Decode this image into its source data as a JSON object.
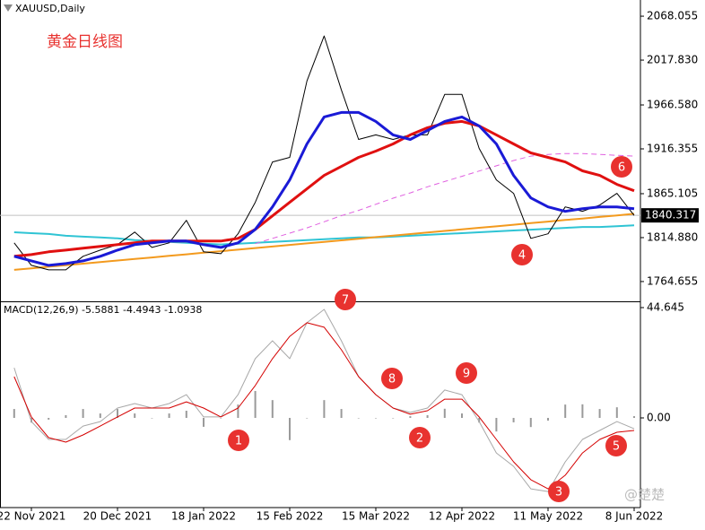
{
  "chart_data": [
    {
      "type": "line",
      "subtitle": "XAUUSD,Daily",
      "title": "黄金日线图",
      "ylim": [
        1742.03,
        2086.57
      ],
      "yticks": [
        2068.055,
        {
          "value": 2017.83,
          "label": "2017.830"
        },
        {
          "value": 1966.58,
          "label": "1966.580"
        },
        1916.355,
        1865.105,
        {
          "value": 1814.88,
          "label": "1814.880"
        },
        1764.655
      ],
      "current_price": 1840.317,
      "series": [
        {
          "color": "#2fc4d4",
          "values": [
            1821,
            1820,
            1819,
            1817,
            1816,
            1815,
            1814,
            1812,
            1811,
            1810,
            1809,
            1808,
            1807,
            1808,
            1809,
            1810,
            1811,
            1812,
            1813,
            1814,
            1815,
            1815,
            1816,
            1817,
            1818,
            1819,
            1820,
            1821,
            1822,
            1823,
            1824,
            1825,
            1826,
            1827,
            1827,
            1828,
            1829
          ]
        },
        {
          "color": "#f39a1e",
          "values": [
            1778.0,
            1779.8,
            1781.6,
            1783.3,
            1785.1,
            1786.9,
            1788.7,
            1790.5,
            1792.2,
            1794.0,
            1795.8,
            1797.6,
            1799.4,
            1801.1,
            1802.9,
            1804.7,
            1806.5,
            1808.3,
            1810.0,
            1811.8,
            1813.6,
            1815.4,
            1817.2,
            1818.9,
            1820.7,
            1822.5,
            1824.3,
            1826.1,
            1827.8,
            1829.6,
            1831.4,
            1833.2,
            1835.0,
            1836.7,
            1838.5,
            1840.3,
            1842.1
          ]
        },
        {
          "color": "#e060e0",
          "dashed": true,
          "values": [
            null,
            null,
            null,
            null,
            null,
            null,
            null,
            null,
            null,
            null,
            null,
            null,
            null,
            null,
            1808,
            1814,
            1820,
            1826,
            1833,
            1840,
            1846,
            1853,
            1860,
            1866,
            1873,
            1879,
            1885,
            1891,
            1897,
            1903,
            1908,
            1910,
            1911,
            1911,
            1910,
            1909,
            1908
          ]
        },
        {
          "color": "#000000",
          "values": [
            1808.9,
            1783.2,
            1778.0,
            1778.0,
            1793.5,
            1800.6,
            1806.8,
            1821.2,
            1803.7,
            1808.9,
            1834.6,
            1798.6,
            1796.5,
            1819.2,
            1855.2,
            1901.4,
            1906.6,
            1994.0,
            2045.4,
            1983.7,
            1927.1,
            1932.3,
            1927.1,
            1932.3,
            1932.3,
            1978.6,
            1978.6,
            1916.9,
            1880.9,
            1865.5,
            1814.0,
            1819.2,
            1850.0,
            1845.0,
            1852.1,
            1865.5,
            1840.3
          ]
        },
        {
          "color": "#e01010",
          "values": [
            1793.5,
            1795.5,
            1798.6,
            1800.6,
            1802.7,
            1804.8,
            1806.8,
            1808.9,
            1810.9,
            1810.9,
            1810.9,
            1810.9,
            1810.9,
            1814.0,
            1824.3,
            1839.8,
            1855.2,
            1870.6,
            1886.0,
            1896.3,
            1906.6,
            1913.8,
            1922.0,
            1932.3,
            1940.5,
            1945.7,
            1947.7,
            1942.6,
            1932.3,
            1922.0,
            1911.7,
            1906.6,
            1901.4,
            1891.2,
            1886.0,
            1875.7,
            1868.5
          ]
        },
        {
          "color": "#1a1ad6",
          "values": [
            1793.5,
            1788.3,
            1783.2,
            1785.2,
            1788.3,
            1793.5,
            1800.6,
            1806.8,
            1808.9,
            1810.9,
            1810.9,
            1806.8,
            1803.7,
            1808.9,
            1824.3,
            1850.0,
            1880.9,
            1922.0,
            1952.9,
            1958.0,
            1958.0,
            1947.7,
            1932.3,
            1927.1,
            1937.4,
            1947.7,
            1952.9,
            1942.6,
            1922.0,
            1886.0,
            1860.3,
            1850.0,
            1844.9,
            1848.0,
            1850.0,
            1850.0,
            1848.0
          ]
        }
      ],
      "annotations": [
        {
          "text": "6"
        },
        {
          "text": "4"
        }
      ]
    },
    {
      "type": "line",
      "title": "MACD(12,26,9) -5.5881 -4.4943 -1.0938",
      "categories": [
        null,
        "22 Nov 2021",
        null,
        null,
        null,
        null,
        "20 Dec 2021",
        null,
        null,
        null,
        null,
        "18 Jan 2022",
        null,
        null,
        null,
        null,
        "15 Feb 2022",
        null,
        null,
        null,
        null,
        "15 Mar 2022",
        null,
        null,
        null,
        null,
        "12 Apr 2022",
        null,
        null,
        null,
        null,
        "11 May 2022",
        null,
        null,
        null,
        null,
        "8 Jun 2022"
      ],
      "ylim": [
        -36.3,
        46.82
      ],
      "yticks": [
        44.645,
        {
          "value": 0,
          "label": "0.00"
        }
      ],
      "series": [
        {
          "color": "#9a9a9a",
          "style": "bar",
          "values": [
            3.6,
            -1.9,
            -0.7,
            1.1,
            3.6,
            1.8,
            3.6,
            1.8,
            0,
            1.8,
            2.9,
            -3.6,
            0,
            5.4,
            10.9,
            7.2,
            -9,
            0,
            7.2,
            3.6,
            0,
            0,
            0,
            0.7,
            1.1,
            3.7,
            1.8,
            -1.9,
            -5.5,
            -1.8,
            -3.7,
            -1.1,
            5.4,
            5.5,
            3.6,
            4.3,
            0.7
          ]
        },
        {
          "color": "#a8a8a8",
          "values": [
            20.3,
            -1.5,
            -8.7,
            -8.7,
            -3.3,
            -1.5,
            4.0,
            5.8,
            4.0,
            5.8,
            9.4,
            0.4,
            0.4,
            9.4,
            24.0,
            31.2,
            24.0,
            38.5,
            43.9,
            31.2,
            16.7,
            9.4,
            4.0,
            2.2,
            4.0,
            11.3,
            9.4,
            -1.5,
            -14.2,
            -19.6,
            -28.7,
            -29.8,
            -17.8,
            -8.7,
            -5.1,
            -1.5,
            -4.4
          ]
        },
        {
          "color": "#d40000",
          "values": [
            16.7,
            0.4,
            -8.0,
            -9.8,
            -6.9,
            -3.3,
            0.4,
            4.0,
            4.0,
            4.0,
            6.5,
            4.0,
            0.4,
            4.0,
            13.1,
            24.0,
            33.0,
            38.5,
            36.7,
            27.6,
            16.7,
            9.4,
            4.0,
            1.5,
            2.9,
            7.6,
            7.6,
            0.4,
            -8.7,
            -17.8,
            -25.0,
            -28.7,
            -23.2,
            -14.2,
            -8.7,
            -5.8,
            -5.1
          ]
        }
      ],
      "annotations": [
        {
          "text": "7"
        },
        {
          "text": "8"
        },
        {
          "text": "9"
        },
        {
          "text": "1"
        },
        {
          "text": "2"
        },
        {
          "text": "3"
        },
        {
          "text": "5"
        }
      ],
      "watermark": "@楚楚"
    }
  ]
}
